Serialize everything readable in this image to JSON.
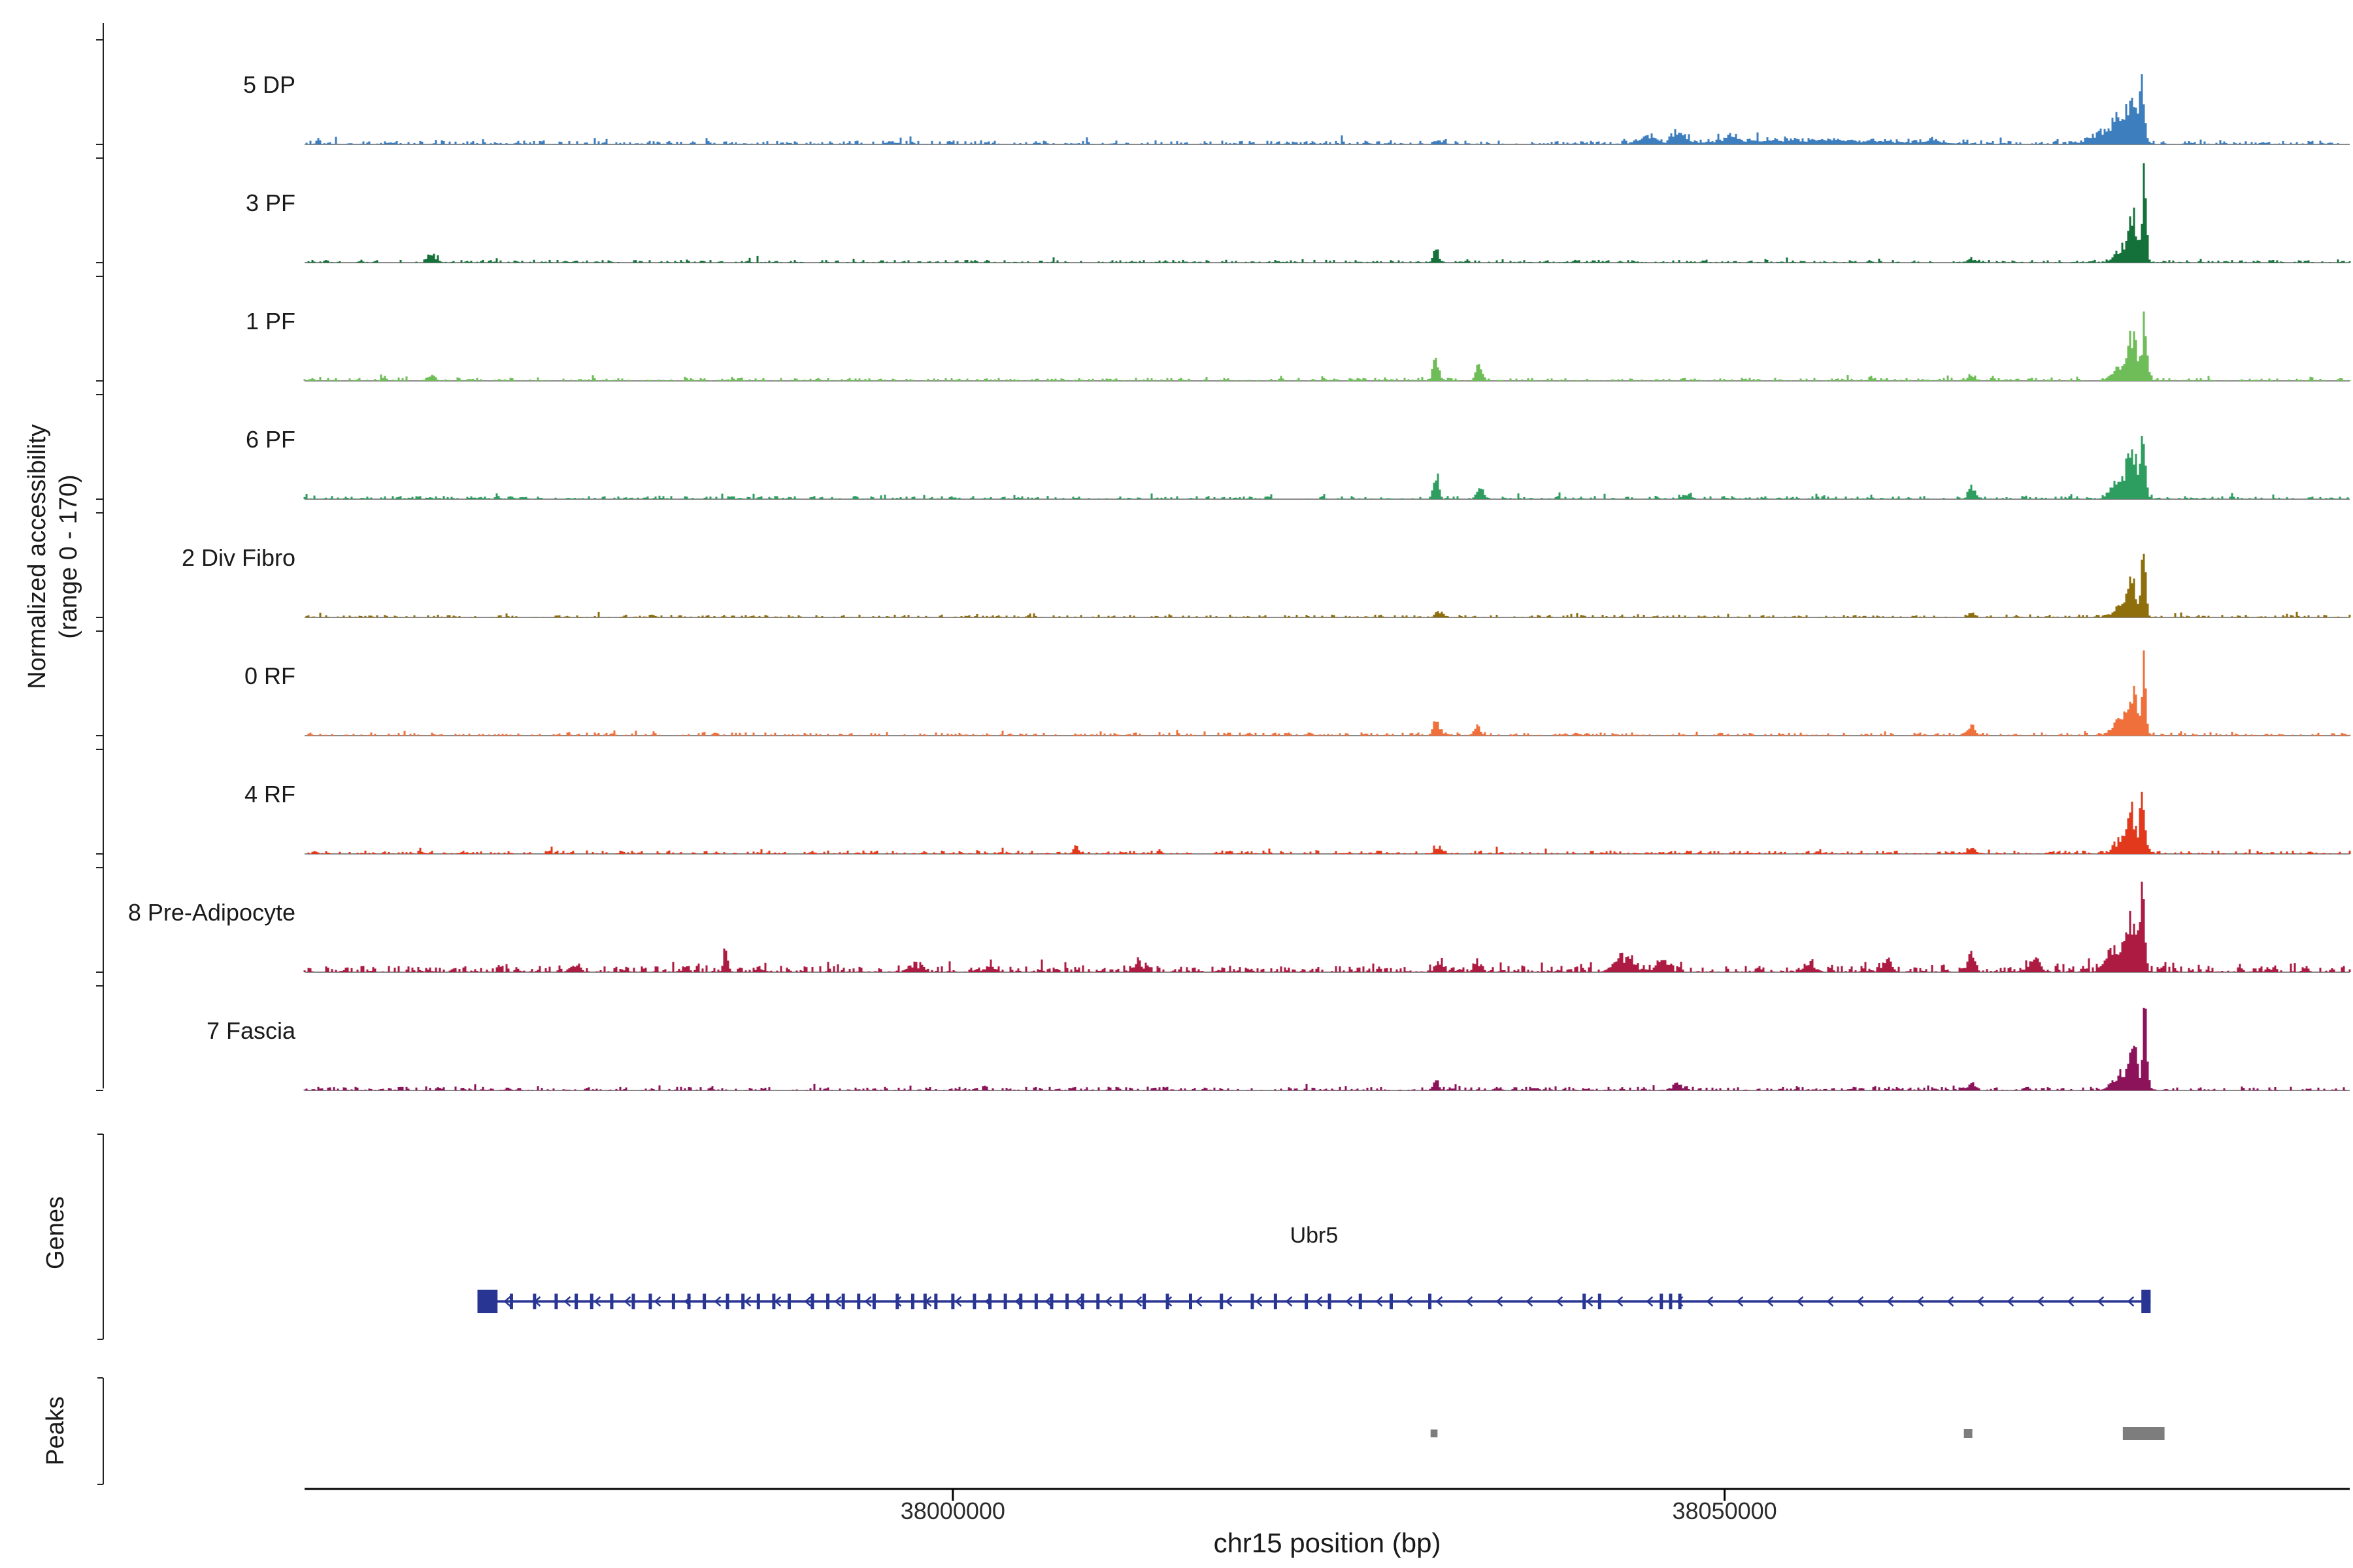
{
  "figure": {
    "y_axis_label_line1": "Normalized accessibility",
    "y_axis_label_line2": "(range 0 - 170)",
    "genes_label": "Genes",
    "peaks_label": "Peaks",
    "x_axis": {
      "title": "chr15 position (bp)",
      "ticks": [
        {
          "bp": 38000000,
          "label": "38000000"
        },
        {
          "bp": 38050000,
          "label": "38050000"
        }
      ]
    }
  },
  "chart_data": {
    "type": "area",
    "title": "",
    "xlabel": "chr15 position (bp)",
    "ylabel": "Normalized accessibility (range 0 - 170)",
    "x_range_bp": [
      37958000,
      38090500
    ],
    "y_range": [
      0,
      170
    ],
    "peaks_format": "[position_bp, height_0_to_170, sigma_bp]",
    "tracks": [
      {
        "name": "5 DP",
        "color": "#3d7ebf",
        "baseline_noise": {
          "base": 3.5,
          "spike_p": 0.05,
          "spike_amp": 12
        },
        "peaks": [
          [
            38077050,
            150,
            150
          ],
          [
            38076400,
            95,
            280
          ],
          [
            38075500,
            45,
            550
          ],
          [
            38074300,
            22,
            600
          ],
          [
            38047000,
            26,
            350
          ],
          [
            38045000,
            14,
            500
          ],
          [
            38050500,
            12,
            300
          ],
          [
            38055000,
            8,
            6000
          ],
          [
            38063500,
            9,
            300
          ],
          [
            38031500,
            8,
            250
          ]
        ]
      },
      {
        "name": "3 PF",
        "color": "#15713a",
        "baseline_noise": {
          "base": 2.6,
          "spike_p": 0.03,
          "spike_amp": 9
        },
        "peaks": [
          [
            38077200,
            165,
            140
          ],
          [
            38076500,
            80,
            260
          ],
          [
            38075800,
            30,
            500
          ],
          [
            37966200,
            20,
            220
          ],
          [
            38031300,
            28,
            170
          ],
          [
            38066000,
            8,
            250
          ]
        ]
      },
      {
        "name": "1 PF",
        "color": "#6fbd58",
        "baseline_noise": {
          "base": 3.0,
          "spike_p": 0.04,
          "spike_amp": 9
        },
        "peaks": [
          [
            38077250,
            140,
            150
          ],
          [
            38076500,
            85,
            260
          ],
          [
            38075800,
            35,
            500
          ],
          [
            38031300,
            52,
            180
          ],
          [
            38034100,
            28,
            220
          ],
          [
            37966200,
            12,
            250
          ],
          [
            38066000,
            10,
            250
          ]
        ]
      },
      {
        "name": "6 PF",
        "color": "#2e9e60",
        "baseline_noise": {
          "base": 3.0,
          "spike_p": 0.04,
          "spike_amp": 10
        },
        "peaks": [
          [
            38077150,
            155,
            150
          ],
          [
            38076400,
            100,
            280
          ],
          [
            38075600,
            40,
            500
          ],
          [
            38031300,
            58,
            170
          ],
          [
            38034200,
            24,
            220
          ],
          [
            38066000,
            26,
            220
          ],
          [
            38047500,
            10,
            300
          ]
        ]
      },
      {
        "name": "2 Div Fibro",
        "color": "#8f6e0c",
        "baseline_noise": {
          "base": 2.6,
          "spike_p": 0.03,
          "spike_amp": 8
        },
        "peaks": [
          [
            38077150,
            170,
            140
          ],
          [
            38076400,
            70,
            260
          ],
          [
            38075700,
            25,
            450
          ],
          [
            38031500,
            12,
            250
          ],
          [
            38066000,
            9,
            250
          ]
        ]
      },
      {
        "name": "0 RF",
        "color": "#f0703c",
        "baseline_noise": {
          "base": 3.0,
          "spike_p": 0.04,
          "spike_amp": 9
        },
        "peaks": [
          [
            38077150,
            160,
            150
          ],
          [
            38076400,
            90,
            270
          ],
          [
            38075700,
            32,
            500
          ],
          [
            38031300,
            30,
            180
          ],
          [
            38034000,
            18,
            220
          ],
          [
            38066000,
            26,
            220
          ]
        ]
      },
      {
        "name": "4 RF",
        "color": "#e2391c",
        "baseline_noise": {
          "base": 3.2,
          "spike_p": 0.05,
          "spike_amp": 10
        },
        "peaks": [
          [
            38077100,
            140,
            150
          ],
          [
            38076400,
            80,
            260
          ],
          [
            38075700,
            28,
            450
          ],
          [
            38031500,
            14,
            250
          ],
          [
            38008000,
            12,
            180
          ],
          [
            38066000,
            14,
            250
          ]
        ]
      },
      {
        "name": "8 Pre-Adipocyte",
        "color": "#ad1a42",
        "baseline_noise": {
          "base": 6.0,
          "spike_p": 0.1,
          "spike_amp": 17
        },
        "peaks": [
          [
            38077050,
            165,
            160
          ],
          [
            38076300,
            100,
            300
          ],
          [
            38075400,
            45,
            600
          ],
          [
            37985300,
            34,
            160
          ],
          [
            38031500,
            22,
            250
          ],
          [
            38034000,
            20,
            220
          ],
          [
            38043500,
            28,
            600
          ],
          [
            38046000,
            22,
            400
          ],
          [
            38055500,
            14,
            400
          ],
          [
            38060500,
            16,
            350
          ],
          [
            38066000,
            38,
            220
          ],
          [
            38070000,
            22,
            400
          ],
          [
            37997500,
            14,
            400
          ],
          [
            38002500,
            12,
            300
          ],
          [
            38012000,
            12,
            350
          ],
          [
            37975500,
            12,
            300
          ]
        ]
      },
      {
        "name": "7 Fascia",
        "color": "#8c125a",
        "baseline_noise": {
          "base": 3.4,
          "spike_p": 0.05,
          "spike_amp": 10
        },
        "peaks": [
          [
            38077250,
            170,
            140
          ],
          [
            38076500,
            80,
            260
          ],
          [
            38075700,
            30,
            500
          ],
          [
            38031300,
            22,
            180
          ],
          [
            38066000,
            16,
            250
          ],
          [
            38047000,
            10,
            300
          ]
        ]
      }
    ],
    "gene": {
      "name": "Ubr5",
      "start_bp": 37969200,
      "end_bp": 38077600,
      "strand": "-",
      "color": "#283593",
      "utr_blocks": [
        {
          "start_bp": 37969200,
          "end_bp": 37970500
        },
        {
          "start_bp": 38077000,
          "end_bp": 38077600
        }
      ],
      "exons_bp": [
        37971400,
        37972900,
        37974300,
        37975600,
        37976600,
        37977900,
        37979300,
        37980400,
        37981900,
        37982900,
        37983900,
        37985400,
        37986400,
        37987400,
        37988400,
        37989400,
        37990900,
        37991900,
        37992900,
        37993900,
        37994900,
        37996400,
        37997400,
        37998200,
        37998900,
        38000000,
        38001400,
        38002400,
        38003400,
        38004400,
        38005400,
        38006400,
        38007400,
        38008400,
        38009400,
        38010900,
        38012400,
        38013900,
        38015400,
        38017400,
        38019400,
        38020900,
        38022900,
        38024400,
        38026400,
        38028400,
        38030900,
        38040900,
        38041900,
        38045900,
        38046500,
        38047100
      ]
    },
    "peak_boxes": [
      {
        "start_bp": 38030950,
        "end_bp": 38031400
      },
      {
        "start_bp": 38065500,
        "end_bp": 38066050
      },
      {
        "start_bp": 38075800,
        "end_bp": 38078500
      }
    ]
  }
}
